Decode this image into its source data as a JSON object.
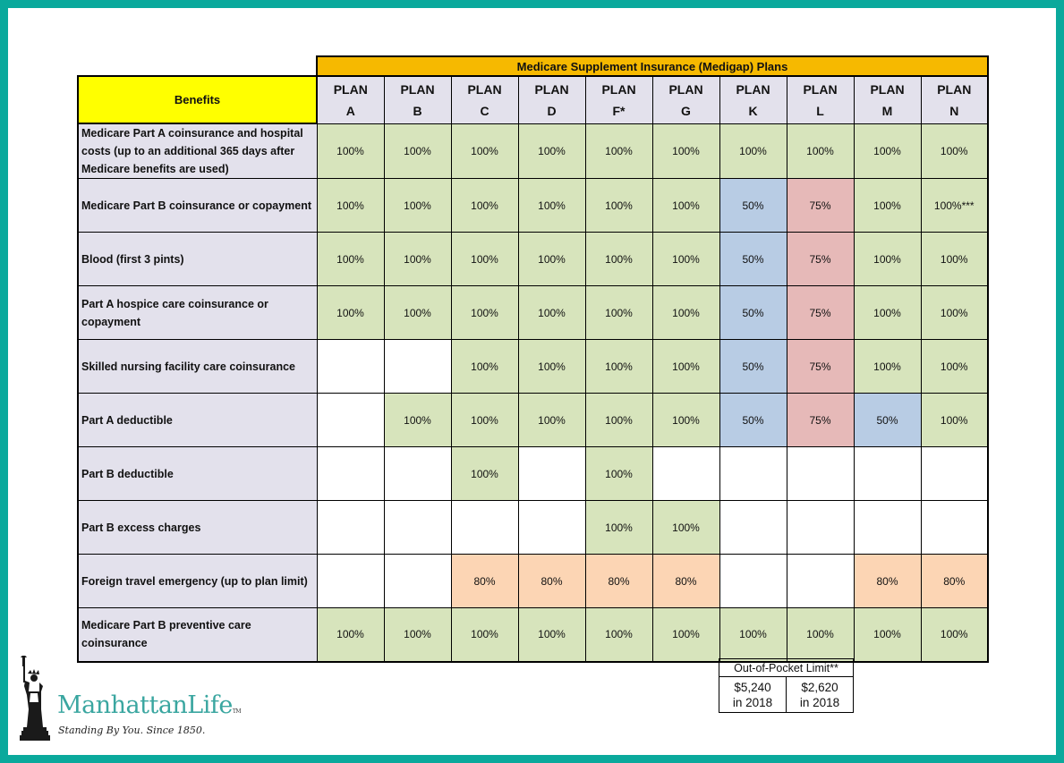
{
  "table": {
    "title": "Medicare Supplement Insurance (Medigap) Plans",
    "benefits_header": "Benefits",
    "plan_word": "PLAN",
    "plans": [
      "A",
      "B",
      "C",
      "D",
      "F*",
      "G",
      "K",
      "L",
      "M",
      "N"
    ],
    "rows": [
      {
        "benefit": "Medicare Part A coinsurance and hospital costs (up to an additional 365 days after Medicare benefits are used)",
        "cells": [
          {
            "v": "100%",
            "c": "green"
          },
          {
            "v": "100%",
            "c": "green"
          },
          {
            "v": "100%",
            "c": "green"
          },
          {
            "v": "100%",
            "c": "green"
          },
          {
            "v": "100%",
            "c": "green"
          },
          {
            "v": "100%",
            "c": "green"
          },
          {
            "v": "100%",
            "c": "green"
          },
          {
            "v": "100%",
            "c": "green"
          },
          {
            "v": "100%",
            "c": "green"
          },
          {
            "v": "100%",
            "c": "green"
          }
        ]
      },
      {
        "benefit": "Medicare Part B coinsurance or copayment",
        "cells": [
          {
            "v": "100%",
            "c": "green"
          },
          {
            "v": "100%",
            "c": "green"
          },
          {
            "v": "100%",
            "c": "green"
          },
          {
            "v": "100%",
            "c": "green"
          },
          {
            "v": "100%",
            "c": "green"
          },
          {
            "v": "100%",
            "c": "green"
          },
          {
            "v": "50%",
            "c": "blue"
          },
          {
            "v": "75%",
            "c": "pink"
          },
          {
            "v": "100%",
            "c": "green"
          },
          {
            "v": "100%***",
            "c": "green"
          }
        ]
      },
      {
        "benefit": "Blood (first 3 pints)",
        "cells": [
          {
            "v": "100%",
            "c": "green"
          },
          {
            "v": "100%",
            "c": "green"
          },
          {
            "v": "100%",
            "c": "green"
          },
          {
            "v": "100%",
            "c": "green"
          },
          {
            "v": "100%",
            "c": "green"
          },
          {
            "v": "100%",
            "c": "green"
          },
          {
            "v": "50%",
            "c": "blue"
          },
          {
            "v": "75%",
            "c": "pink"
          },
          {
            "v": "100%",
            "c": "green"
          },
          {
            "v": "100%",
            "c": "green"
          }
        ]
      },
      {
        "benefit": "Part A hospice care coinsurance or copayment",
        "cells": [
          {
            "v": "100%",
            "c": "green"
          },
          {
            "v": "100%",
            "c": "green"
          },
          {
            "v": "100%",
            "c": "green"
          },
          {
            "v": "100%",
            "c": "green"
          },
          {
            "v": "100%",
            "c": "green"
          },
          {
            "v": "100%",
            "c": "green"
          },
          {
            "v": "50%",
            "c": "blue"
          },
          {
            "v": "75%",
            "c": "pink"
          },
          {
            "v": "100%",
            "c": "green"
          },
          {
            "v": "100%",
            "c": "green"
          }
        ]
      },
      {
        "benefit": "Skilled nursing facility care coinsurance",
        "cells": [
          {
            "v": "",
            "c": "empty"
          },
          {
            "v": "",
            "c": "empty"
          },
          {
            "v": "100%",
            "c": "green"
          },
          {
            "v": "100%",
            "c": "green"
          },
          {
            "v": "100%",
            "c": "green"
          },
          {
            "v": "100%",
            "c": "green"
          },
          {
            "v": "50%",
            "c": "blue"
          },
          {
            "v": "75%",
            "c": "pink"
          },
          {
            "v": "100%",
            "c": "green"
          },
          {
            "v": "100%",
            "c": "green"
          }
        ]
      },
      {
        "benefit": "Part A deductible",
        "cells": [
          {
            "v": "",
            "c": "empty"
          },
          {
            "v": "100%",
            "c": "green"
          },
          {
            "v": "100%",
            "c": "green"
          },
          {
            "v": "100%",
            "c": "green"
          },
          {
            "v": "100%",
            "c": "green"
          },
          {
            "v": "100%",
            "c": "green"
          },
          {
            "v": "50%",
            "c": "blue"
          },
          {
            "v": "75%",
            "c": "pink"
          },
          {
            "v": "50%",
            "c": "blue"
          },
          {
            "v": "100%",
            "c": "green"
          }
        ]
      },
      {
        "benefit": "Part B deductible",
        "cells": [
          {
            "v": "",
            "c": "empty"
          },
          {
            "v": "",
            "c": "empty"
          },
          {
            "v": "100%",
            "c": "green"
          },
          {
            "v": "",
            "c": "empty"
          },
          {
            "v": "100%",
            "c": "green"
          },
          {
            "v": "",
            "c": "empty"
          },
          {
            "v": "",
            "c": "empty"
          },
          {
            "v": "",
            "c": "empty"
          },
          {
            "v": "",
            "c": "empty"
          },
          {
            "v": "",
            "c": "empty"
          }
        ]
      },
      {
        "benefit": "Part B excess charges",
        "cells": [
          {
            "v": "",
            "c": "empty"
          },
          {
            "v": "",
            "c": "empty"
          },
          {
            "v": "",
            "c": "empty"
          },
          {
            "v": "",
            "c": "empty"
          },
          {
            "v": "100%",
            "c": "green"
          },
          {
            "v": "100%",
            "c": "green"
          },
          {
            "v": "",
            "c": "empty"
          },
          {
            "v": "",
            "c": "empty"
          },
          {
            "v": "",
            "c": "empty"
          },
          {
            "v": "",
            "c": "empty"
          }
        ]
      },
      {
        "benefit": "Foreign travel emergency (up to plan limit)",
        "cells": [
          {
            "v": "",
            "c": "empty"
          },
          {
            "v": "",
            "c": "empty"
          },
          {
            "v": "80%",
            "c": "peach"
          },
          {
            "v": "80%",
            "c": "peach"
          },
          {
            "v": "80%",
            "c": "peach"
          },
          {
            "v": "80%",
            "c": "peach"
          },
          {
            "v": "",
            "c": "empty"
          },
          {
            "v": "",
            "c": "empty"
          },
          {
            "v": "80%",
            "c": "peach"
          },
          {
            "v": "80%",
            "c": "peach"
          }
        ]
      },
      {
        "benefit": "Medicare Part B preventive care coinsurance",
        "cells": [
          {
            "v": "100%",
            "c": "green"
          },
          {
            "v": "100%",
            "c": "green"
          },
          {
            "v": "100%",
            "c": "green"
          },
          {
            "v": "100%",
            "c": "green"
          },
          {
            "v": "100%",
            "c": "green"
          },
          {
            "v": "100%",
            "c": "green"
          },
          {
            "v": "100%",
            "c": "green"
          },
          {
            "v": "100%",
            "c": "green"
          },
          {
            "v": "100%",
            "c": "green"
          },
          {
            "v": "100%",
            "c": "green"
          }
        ]
      }
    ]
  },
  "out_of_pocket": {
    "label": "Out-of-Pocket Limit**",
    "k_amount": "$5,240",
    "k_year": "in 2018",
    "l_amount": "$2,620",
    "l_year": "in 2018"
  },
  "logo": {
    "brand": "ManhattanLife",
    "tm": "TM",
    "tagline": "Standing By You. Since 1850.",
    "icon": "statue-of-liberty-icon"
  },
  "colors": {
    "frame": "#0aa99c",
    "title_bg": "#f6b900",
    "benefits_header_bg": "#ffff00",
    "header_bg": "#e3e1ec",
    "green": "#d7e4bc",
    "blue": "#b8cce4",
    "pink": "#e6b9b8",
    "peach": "#fcd5b4",
    "brand": "#3aa6a0"
  }
}
